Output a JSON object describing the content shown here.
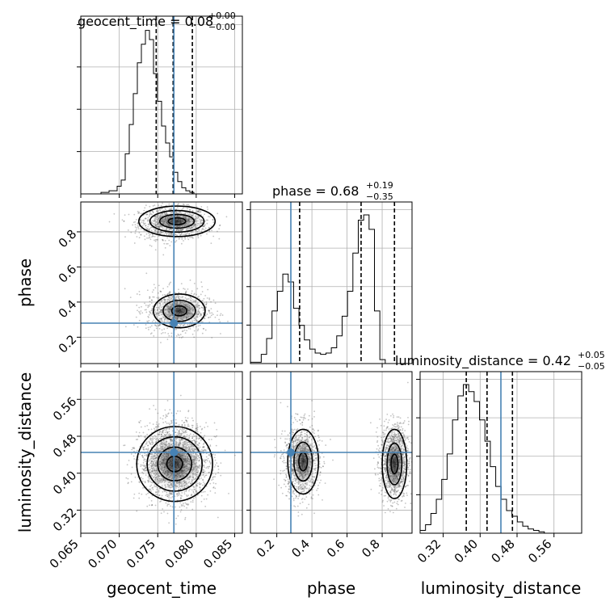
{
  "chart_data": {
    "type": "corner",
    "parameters": [
      "geocent_time",
      "phase",
      "luminosity_distance"
    ],
    "panel_titles": [
      {
        "param": "geocent_time",
        "label": "geocent_time = 0.08",
        "sup": "+0.00",
        "sub": "−0.00"
      },
      {
        "param": "phase",
        "label": "phase = 0.68",
        "sup": "+0.19",
        "sub": "−0.35"
      },
      {
        "param": "luminosity_distance",
        "label": "luminosity_distance = 0.42",
        "sup": "+0.05",
        "sub": "−0.05"
      }
    ],
    "axes": {
      "geocent_time": {
        "range": [
          0.065,
          0.086
        ],
        "ticks": [
          0.065,
          0.07,
          0.075,
          0.08,
          0.085
        ],
        "tick_labels": [
          "0.065",
          "0.070",
          "0.075",
          "0.080",
          "0.085"
        ],
        "label": "geocent_time"
      },
      "phase": {
        "range": [
          0.05,
          0.97
        ],
        "ticks": [
          0.2,
          0.4,
          0.6,
          0.8
        ],
        "tick_labels": [
          "0.2",
          "0.4",
          "0.6",
          "0.8"
        ],
        "label": "phase"
      },
      "luminosity_distance": {
        "range": [
          0.27,
          0.62
        ],
        "ticks": [
          0.32,
          0.4,
          0.48,
          0.56
        ],
        "tick_labels": [
          "0.32",
          "0.40",
          "0.48",
          "0.56"
        ],
        "label": "luminosity_distance"
      }
    },
    "truths": {
      "geocent_time": 0.0771,
      "phase": 0.28,
      "luminosity_distance": 0.445
    },
    "quantiles": {
      "geocent_time": [
        0.0748,
        0.077,
        0.0795
      ],
      "phase": [
        0.33,
        0.68,
        0.87
      ],
      "luminosity_distance": [
        0.37,
        0.415,
        0.47
      ]
    },
    "histograms": {
      "geocent_time": {
        "start": 0.065,
        "width": 0.000525,
        "heights": [
          0,
          0,
          0,
          0,
          0,
          1,
          1,
          2,
          2,
          5,
          9,
          26,
          45,
          65,
          85,
          97,
          106,
          100,
          78,
          60,
          44,
          33,
          24,
          14,
          8,
          4,
          2,
          1,
          0,
          0,
          0,
          0,
          0,
          0,
          0,
          0,
          0,
          0,
          0,
          0
        ]
      },
      "phase": {
        "start": 0.05,
        "width": 0.0307,
        "heights": [
          1,
          1,
          7,
          19,
          40,
          55,
          68,
          62,
          42,
          29,
          18,
          11,
          8,
          7,
          8,
          12,
          21,
          36,
          55,
          84,
          109,
          113,
          102,
          40,
          3,
          0,
          0,
          0,
          0,
          0
        ]
      },
      "luminosity_distance": {
        "start": 0.27,
        "width": 0.0117,
        "heights": [
          2,
          6,
          14,
          24,
          38,
          56,
          80,
          97,
          105,
          100,
          93,
          80,
          65,
          47,
          33,
          24,
          16,
          12,
          8,
          5,
          3,
          2,
          1,
          0,
          0,
          0,
          0,
          0,
          0,
          0
        ]
      }
    },
    "contour_panels": [
      {
        "x": "geocent_time",
        "y": "phase"
      },
      {
        "x": "geocent_time",
        "y": "luminosity_distance"
      },
      {
        "x": "phase",
        "y": "luminosity_distance"
      }
    ],
    "grid": true
  }
}
